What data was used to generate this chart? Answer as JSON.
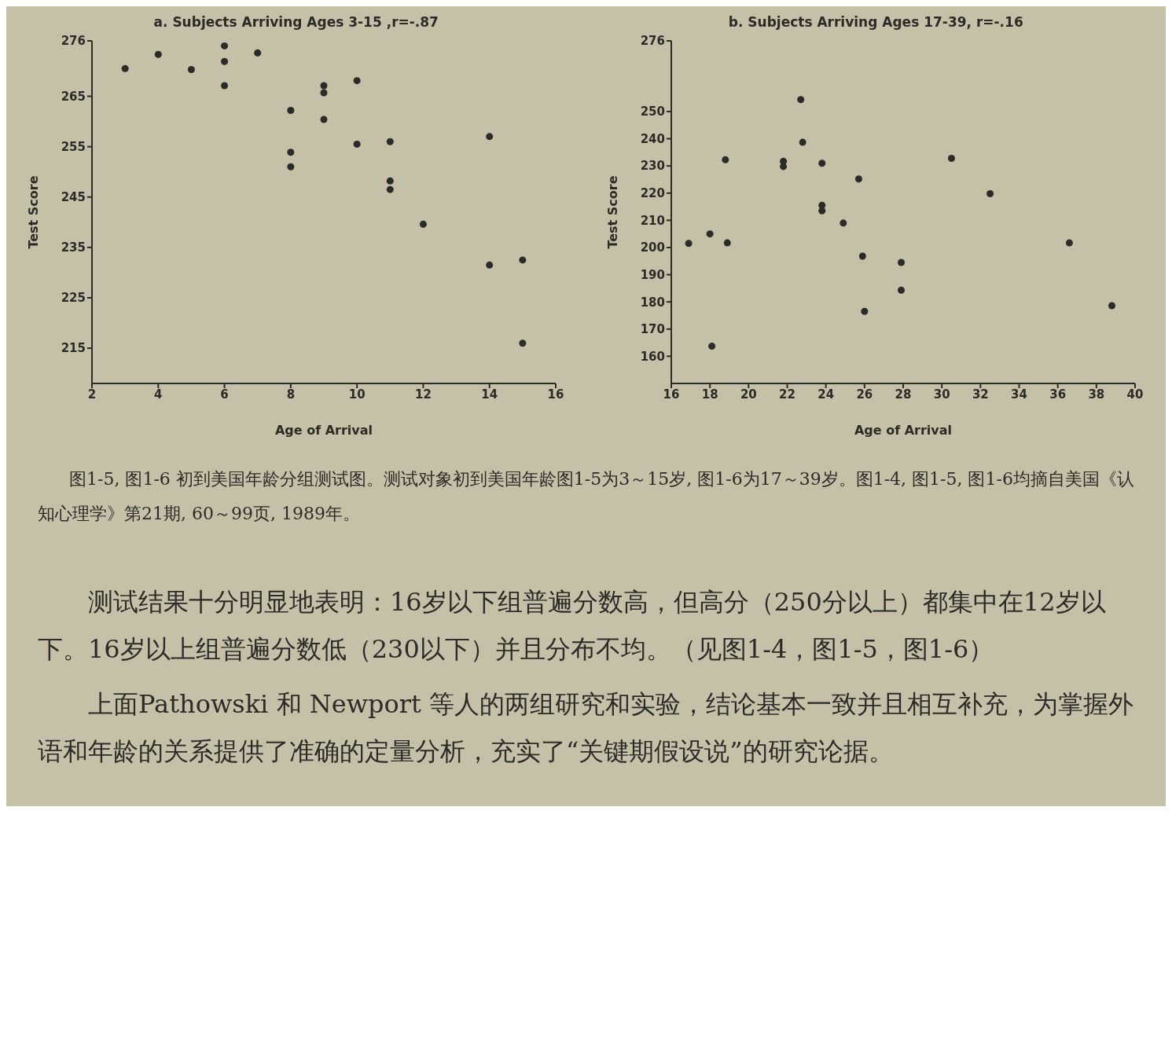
{
  "chart_data": [
    {
      "type": "scatter",
      "title": "a. Subjects Arriving Ages 3-15 ,r=-.87",
      "xlabel": "Age of Arrival",
      "ylabel": "Test Score",
      "marker": "circle",
      "xlim": [
        2,
        16
      ],
      "xticks": [
        2,
        4,
        6,
        8,
        10,
        12,
        14,
        16
      ],
      "ylim": [
        208,
        276
      ],
      "yticks": [
        215,
        225,
        235,
        245,
        255,
        265,
        276
      ],
      "series": [
        {
          "color": "#2b2b28",
          "x": [
            3,
            4,
            5,
            6,
            6,
            6,
            7,
            8,
            8,
            8,
            9,
            9,
            9,
            10,
            10,
            11,
            11,
            11,
            12,
            14,
            14,
            15,
            15
          ],
          "values": [
            270.5,
            273.3,
            270.3,
            275,
            271.9,
            267.1,
            273.6,
            262.2,
            253.9,
            251,
            267.1,
            265.7,
            260.4,
            268.1,
            255.5,
            256,
            248.2,
            246.5,
            239.6,
            257,
            231.5,
            232.5,
            216
          ]
        }
      ]
    },
    {
      "type": "scatter",
      "title": "b. Subjects Arriving Ages 17-39, r=-.16",
      "xlabel": "Age of Arrival",
      "ylabel": "Test Score",
      "marker": "circle",
      "xlim": [
        16,
        40
      ],
      "xticks": [
        16,
        18,
        20,
        22,
        24,
        26,
        28,
        30,
        32,
        34,
        36,
        38,
        40
      ],
      "ylim": [
        150,
        276
      ],
      "yticks": [
        160,
        170,
        180,
        190,
        200,
        210,
        220,
        230,
        240,
        250,
        276
      ],
      "series": [
        {
          "color": "#2b2b28",
          "x": [
            16.9,
            18,
            18.1,
            18.8,
            18.9,
            21.8,
            21.8,
            22.7,
            22.8,
            23.8,
            23.8,
            23.8,
            24.9,
            25.7,
            25.9,
            26,
            27.9,
            27.9,
            30.5,
            32.5,
            36.6,
            38.8
          ],
          "values": [
            201.5,
            205,
            163.7,
            232.3,
            201.7,
            231.7,
            229.8,
            254.4,
            238.7,
            231,
            215.5,
            213.5,
            209,
            225.2,
            196.8,
            176.5,
            194.5,
            184.3,
            232.8,
            219.8,
            201.7,
            178.6
          ]
        }
      ],
      "annotations": [
        "图1-5, 图1-6 初到美国年龄分组测试图。测试对象初到美国年龄图1-5为3～15岁, 图1-6为17～39岁。图1-4, 图1-5, 图1-6均摘自美国《认知心理学》第21期, 60～99页, 1989年。",
        "测试结果十分明显地表明：16岁以下组普遍分数高，但高分（250分以上）都集中在12岁以下。16岁以上组普遍分数低（230以下）并且分布不均。（见图1-4，图1-5，图1-6）",
        "上面Pathowski 和 Newport 等人的两组研究和实验，结论基本一致并且相互补充，为掌握外语和年龄的关系提供了准确的定量分析，充实了“关键期假设说”的研究论据。"
      ]
    }
  ]
}
